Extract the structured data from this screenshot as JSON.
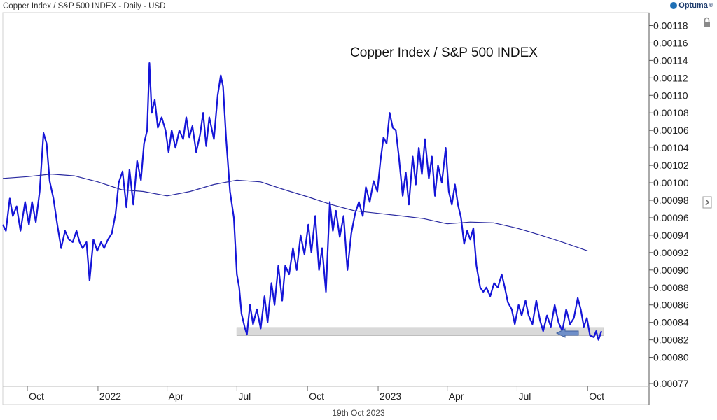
{
  "header": {
    "title": "Copper Index / S&P 500 INDEX - Daily - USD"
  },
  "brand": {
    "name": "Optuma",
    "trademark": "®"
  },
  "footer": {
    "date": "19th Oct 2023"
  },
  "chart_data": {
    "type": "line",
    "title": "Copper Index / S&P 500 INDEX",
    "ylim": [
      0.00077,
      0.00119
    ],
    "y_ticks": [
      "0.00118",
      "0.00116",
      "0.00114",
      "0.00112",
      "0.00110",
      "0.00108",
      "0.00106",
      "0.00104",
      "0.00102",
      "0.00100",
      "0.00098",
      "0.00096",
      "0.00094",
      "0.00092",
      "0.00090",
      "0.00088",
      "0.00086",
      "0.00084",
      "0.00082",
      "0.00080",
      "0.00077"
    ],
    "x_ticks": [
      "Oct",
      "2022",
      "Apr",
      "Jul",
      "Oct",
      "2023",
      "Apr",
      "Jul",
      "Oct"
    ],
    "x_tick_dates": [
      "2021-10-01",
      "2022-01-01",
      "2022-04-01",
      "2022-07-01",
      "2022-10-01",
      "2023-01-01",
      "2023-04-01",
      "2023-07-01",
      "2023-10-01"
    ],
    "grid": false,
    "colors": {
      "price": "#1515d8",
      "average": "#2a2aa0",
      "support": "#d9d9d9",
      "arrow": "#6f8fc9"
    },
    "series": [
      {
        "role": "price",
        "points": [
          [
            "2021-08-30",
            0.000952
          ],
          [
            "2021-09-03",
            0.000945
          ],
          [
            "2021-09-08",
            0.000982
          ],
          [
            "2021-09-12",
            0.000962
          ],
          [
            "2021-09-17",
            0.000973
          ],
          [
            "2021-09-22",
            0.000945
          ],
          [
            "2021-09-28",
            0.000978
          ],
          [
            "2021-10-03",
            0.000952
          ],
          [
            "2021-10-07",
            0.000978
          ],
          [
            "2021-10-12",
            0.000955
          ],
          [
            "2021-10-17",
            0.00099
          ],
          [
            "2021-10-22",
            0.001057
          ],
          [
            "2021-10-26",
            0.001045
          ],
          [
            "2021-10-30",
            0.001002
          ],
          [
            "2021-11-04",
            0.000982
          ],
          [
            "2021-11-09",
            0.000952
          ],
          [
            "2021-11-14",
            0.000925
          ],
          [
            "2021-11-19",
            0.000945
          ],
          [
            "2021-11-24",
            0.000935
          ],
          [
            "2021-11-29",
            0.000932
          ],
          [
            "2021-12-04",
            0.000945
          ],
          [
            "2021-12-08",
            0.000932
          ],
          [
            "2021-12-12",
            0.000925
          ],
          [
            "2021-12-17",
            0.000932
          ],
          [
            "2021-12-21",
            0.000888
          ],
          [
            "2021-12-26",
            0.000935
          ],
          [
            "2021-12-31",
            0.000922
          ],
          [
            "2022-01-05",
            0.000932
          ],
          [
            "2022-01-09",
            0.000925
          ],
          [
            "2022-01-14",
            0.000935
          ],
          [
            "2022-01-19",
            0.000942
          ],
          [
            "2022-01-24",
            0.000965
          ],
          [
            "2022-01-28",
            0.001
          ],
          [
            "2022-02-02",
            0.001013
          ],
          [
            "2022-02-07",
            0.000972
          ],
          [
            "2022-02-11",
            0.001015
          ],
          [
            "2022-02-16",
            0.000975
          ],
          [
            "2022-02-21",
            0.001025
          ],
          [
            "2022-02-26",
            0.001003
          ],
          [
            "2022-03-02",
            0.001045
          ],
          [
            "2022-03-06",
            0.00106
          ],
          [
            "2022-03-09",
            0.001137
          ],
          [
            "2022-03-12",
            0.00108
          ],
          [
            "2022-03-16",
            0.001095
          ],
          [
            "2022-03-20",
            0.001063
          ],
          [
            "2022-03-25",
            0.001075
          ],
          [
            "2022-03-30",
            0.00106
          ],
          [
            "2022-04-03",
            0.001035
          ],
          [
            "2022-04-07",
            0.00106
          ],
          [
            "2022-04-12",
            0.00104
          ],
          [
            "2022-04-17",
            0.00106
          ],
          [
            "2022-04-22",
            0.00105
          ],
          [
            "2022-04-26",
            0.001075
          ],
          [
            "2022-04-30",
            0.001052
          ],
          [
            "2022-05-04",
            0.001065
          ],
          [
            "2022-05-09",
            0.001035
          ],
          [
            "2022-05-14",
            0.001055
          ],
          [
            "2022-05-18",
            0.00108
          ],
          [
            "2022-05-22",
            0.001042
          ],
          [
            "2022-05-26",
            0.001075
          ],
          [
            "2022-06-01",
            0.00105
          ],
          [
            "2022-06-06",
            0.0011
          ],
          [
            "2022-06-10",
            0.001123
          ],
          [
            "2022-06-13",
            0.00111
          ],
          [
            "2022-06-17",
            0.00105
          ],
          [
            "2022-06-22",
            0.00099
          ],
          [
            "2022-06-27",
            0.00096
          ],
          [
            "2022-07-01",
            0.000895
          ],
          [
            "2022-07-04",
            0.00088
          ],
          [
            "2022-07-07",
            0.00085
          ],
          [
            "2022-07-11",
            0.000835
          ],
          [
            "2022-07-14",
            0.000826
          ],
          [
            "2022-07-18",
            0.00086
          ],
          [
            "2022-07-22",
            0.000838
          ],
          [
            "2022-07-27",
            0.000855
          ],
          [
            "2022-08-01",
            0.000833
          ],
          [
            "2022-08-06",
            0.00087
          ],
          [
            "2022-08-10",
            0.00084
          ],
          [
            "2022-08-15",
            0.000885
          ],
          [
            "2022-08-19",
            0.00086
          ],
          [
            "2022-08-24",
            0.000905
          ],
          [
            "2022-08-29",
            0.000865
          ],
          [
            "2022-09-02",
            0.000905
          ],
          [
            "2022-09-07",
            0.000895
          ],
          [
            "2022-09-12",
            0.000925
          ],
          [
            "2022-09-17",
            0.0009
          ],
          [
            "2022-09-22",
            0.00094
          ],
          [
            "2022-09-27",
            0.000918
          ],
          [
            "2022-10-02",
            0.000952
          ],
          [
            "2022-10-06",
            0.00092
          ],
          [
            "2022-10-11",
            0.000962
          ],
          [
            "2022-10-16",
            0.0009
          ],
          [
            "2022-10-20",
            0.000925
          ],
          [
            "2022-10-25",
            0.000875
          ],
          [
            "2022-10-30",
            0.000978
          ],
          [
            "2022-11-03",
            0.000945
          ],
          [
            "2022-11-07",
            0.000968
          ],
          [
            "2022-11-12",
            0.000938
          ],
          [
            "2022-11-17",
            0.000962
          ],
          [
            "2022-11-22",
            0.0009
          ],
          [
            "2022-11-27",
            0.000942
          ],
          [
            "2022-12-02",
            0.000965
          ],
          [
            "2022-12-07",
            0.000978
          ],
          [
            "2022-12-12",
            0.000962
          ],
          [
            "2022-12-16",
            0.000995
          ],
          [
            "2022-12-21",
            0.000978
          ],
          [
            "2022-12-26",
            0.001002
          ],
          [
            "2022-12-31",
            0.00099
          ],
          [
            "2023-01-04",
            0.001025
          ],
          [
            "2023-01-08",
            0.001052
          ],
          [
            "2023-01-12",
            0.001045
          ],
          [
            "2023-01-16",
            0.00108
          ],
          [
            "2023-01-20",
            0.001063
          ],
          [
            "2023-01-24",
            0.00106
          ],
          [
            "2023-01-28",
            0.00103
          ],
          [
            "2023-02-02",
            0.000985
          ],
          [
            "2023-02-06",
            0.001012
          ],
          [
            "2023-02-10",
            0.000975
          ],
          [
            "2023-02-15",
            0.00103
          ],
          [
            "2023-02-19",
            0.000998
          ],
          [
            "2023-02-23",
            0.00104
          ],
          [
            "2023-02-27",
            0.00101
          ],
          [
            "2023-03-03",
            0.00105
          ],
          [
            "2023-03-08",
            0.001005
          ],
          [
            "2023-03-12",
            0.00103
          ],
          [
            "2023-03-16",
            0.000985
          ],
          [
            "2023-03-20",
            0.00102
          ],
          [
            "2023-03-25",
            0.001
          ],
          [
            "2023-03-30",
            0.00104
          ],
          [
            "2023-04-03",
            0.00099
          ],
          [
            "2023-04-07",
            0.000975
          ],
          [
            "2023-04-11",
            0.000998
          ],
          [
            "2023-04-15",
            0.000975
          ],
          [
            "2023-04-19",
            0.00096
          ],
          [
            "2023-04-23",
            0.00093
          ],
          [
            "2023-04-27",
            0.000945
          ],
          [
            "2023-05-01",
            0.000935
          ],
          [
            "2023-05-05",
            0.000948
          ],
          [
            "2023-05-09",
            0.000905
          ],
          [
            "2023-05-14",
            0.00088
          ],
          [
            "2023-05-18",
            0.000875
          ],
          [
            "2023-05-22",
            0.00088
          ],
          [
            "2023-05-27",
            0.00087
          ],
          [
            "2023-06-01",
            0.000885
          ],
          [
            "2023-06-06",
            0.00088
          ],
          [
            "2023-06-11",
            0.000895
          ],
          [
            "2023-06-15",
            0.00088
          ],
          [
            "2023-06-19",
            0.000863
          ],
          [
            "2023-06-24",
            0.000855
          ],
          [
            "2023-06-28",
            0.000838
          ],
          [
            "2023-07-03",
            0.00086
          ],
          [
            "2023-07-07",
            0.000848
          ],
          [
            "2023-07-12",
            0.000865
          ],
          [
            "2023-07-16",
            0.000848
          ],
          [
            "2023-07-21",
            0.000838
          ],
          [
            "2023-07-26",
            0.000865
          ],
          [
            "2023-07-31",
            0.000842
          ],
          [
            "2023-08-04",
            0.00083
          ],
          [
            "2023-08-09",
            0.000848
          ],
          [
            "2023-08-14",
            0.000835
          ],
          [
            "2023-08-19",
            0.00086
          ],
          [
            "2023-08-24",
            0.00084
          ],
          [
            "2023-08-29",
            0.00083
          ],
          [
            "2023-09-03",
            0.000855
          ],
          [
            "2023-09-08",
            0.000838
          ],
          [
            "2023-09-13",
            0.000845
          ],
          [
            "2023-09-18",
            0.000868
          ],
          [
            "2023-09-22",
            0.000855
          ],
          [
            "2023-09-26",
            0.000835
          ],
          [
            "2023-09-30",
            0.000845
          ],
          [
            "2023-10-04",
            0.000825
          ],
          [
            "2023-10-09",
            0.000823
          ],
          [
            "2023-10-12",
            0.00083
          ],
          [
            "2023-10-15",
            0.00082
          ],
          [
            "2023-10-19",
            0.00083
          ]
        ]
      },
      {
        "role": "moving-average",
        "points": [
          [
            "2021-08-30",
            0.001005
          ],
          [
            "2021-10-01",
            0.001007
          ],
          [
            "2021-11-01",
            0.00101
          ],
          [
            "2021-12-01",
            0.001008
          ],
          [
            "2022-01-01",
            0.001001
          ],
          [
            "2022-02-01",
            0.000992
          ],
          [
            "2022-03-01",
            0.00099
          ],
          [
            "2022-04-01",
            0.000985
          ],
          [
            "2022-05-01",
            0.00099
          ],
          [
            "2022-06-01",
            0.000998
          ],
          [
            "2022-07-01",
            0.001003
          ],
          [
            "2022-08-01",
            0.001001
          ],
          [
            "2022-09-01",
            0.000992
          ],
          [
            "2022-10-01",
            0.000984
          ],
          [
            "2022-11-01",
            0.000975
          ],
          [
            "2022-12-01",
            0.000968
          ],
          [
            "2023-01-01",
            0.000965
          ],
          [
            "2023-02-01",
            0.000962
          ],
          [
            "2023-03-01",
            0.000959
          ],
          [
            "2023-04-01",
            0.000953
          ],
          [
            "2023-05-01",
            0.000955
          ],
          [
            "2023-06-01",
            0.000954
          ],
          [
            "2023-07-01",
            0.000948
          ],
          [
            "2023-08-01",
            0.00094
          ],
          [
            "2023-09-01",
            0.000931
          ],
          [
            "2023-10-01",
            0.000922
          ]
        ]
      }
    ],
    "support_zone": {
      "from": "2022-07-01",
      "to": "2023-10-22",
      "lower": 0.000825,
      "upper": 0.000834
    }
  }
}
